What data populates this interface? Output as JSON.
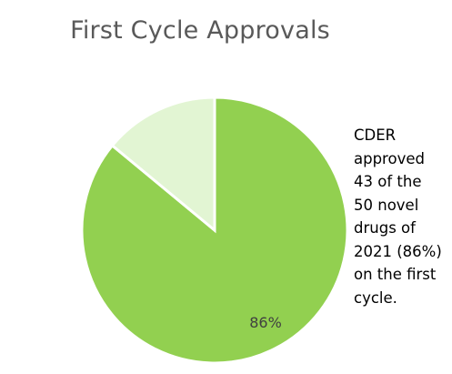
{
  "chart_data": {
    "type": "pie",
    "title": "First Cycle Approvals",
    "slices": [
      {
        "value": 86,
        "label": "86%",
        "color": "#92d050"
      },
      {
        "value": 14,
        "label": "",
        "color": "#e2f5d3"
      }
    ],
    "start_angle_deg": 0,
    "direction": "clockwise_from_top_ending_at_top_for_first_slice",
    "annotation_lines": [
      "CDER",
      "approved",
      "43 of the",
      "50 novel",
      "drugs of",
      "2021 (86%)",
      "on the first",
      "cycle."
    ]
  }
}
